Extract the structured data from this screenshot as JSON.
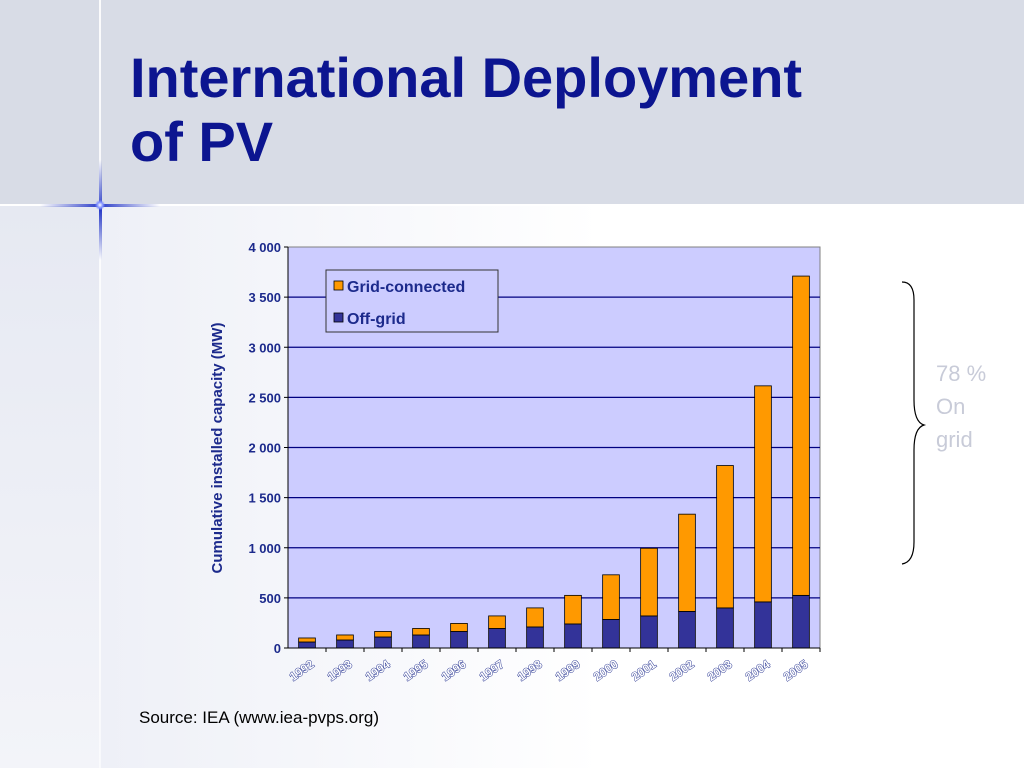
{
  "slide": {
    "title_line1": "International Deployment",
    "title_line2": "of PV",
    "source": "Source: IEA (www.iea-pvps.org)",
    "note_lines": [
      "78 %",
      "On",
      "grid"
    ]
  },
  "colors": {
    "title": "#0c1590",
    "plot_bg": "#ccccff",
    "grid_connected": "#ff9900",
    "off_grid": "#333399",
    "axis_text": "#1c2a8c"
  },
  "chart_data": {
    "type": "bar",
    "stacked": true,
    "categories": [
      "1992",
      "1993",
      "1994",
      "1995",
      "1996",
      "1997",
      "1998",
      "1999",
      "2000",
      "2001",
      "2002",
      "2003",
      "2004",
      "2005"
    ],
    "series": [
      {
        "name": "Off-grid",
        "values": [
          60,
          80,
          110,
          130,
          165,
          195,
          210,
          240,
          285,
          320,
          365,
          400,
          460,
          525
        ]
      },
      {
        "name": "Grid-connected",
        "values": [
          40,
          50,
          55,
          65,
          80,
          125,
          190,
          285,
          445,
          675,
          970,
          1420,
          2155,
          3185
        ]
      }
    ],
    "ylabel": "Cumulative installed capacity (MW)",
    "xlabel": "",
    "ylim": [
      0,
      4000
    ],
    "yticks": [
      0,
      500,
      1000,
      1500,
      2000,
      2500,
      3000,
      3500,
      4000
    ],
    "ytick_labels": [
      "0",
      "500",
      "1 000",
      "1 500",
      "2 000",
      "2 500",
      "3 000",
      "3 500",
      "4 000"
    ],
    "legend": {
      "entries": [
        {
          "label": "Grid-connected",
          "color": "#ff9900"
        },
        {
          "label": "Off-grid",
          "color": "#333399"
        }
      ],
      "position": "top-left"
    },
    "grid": true
  }
}
